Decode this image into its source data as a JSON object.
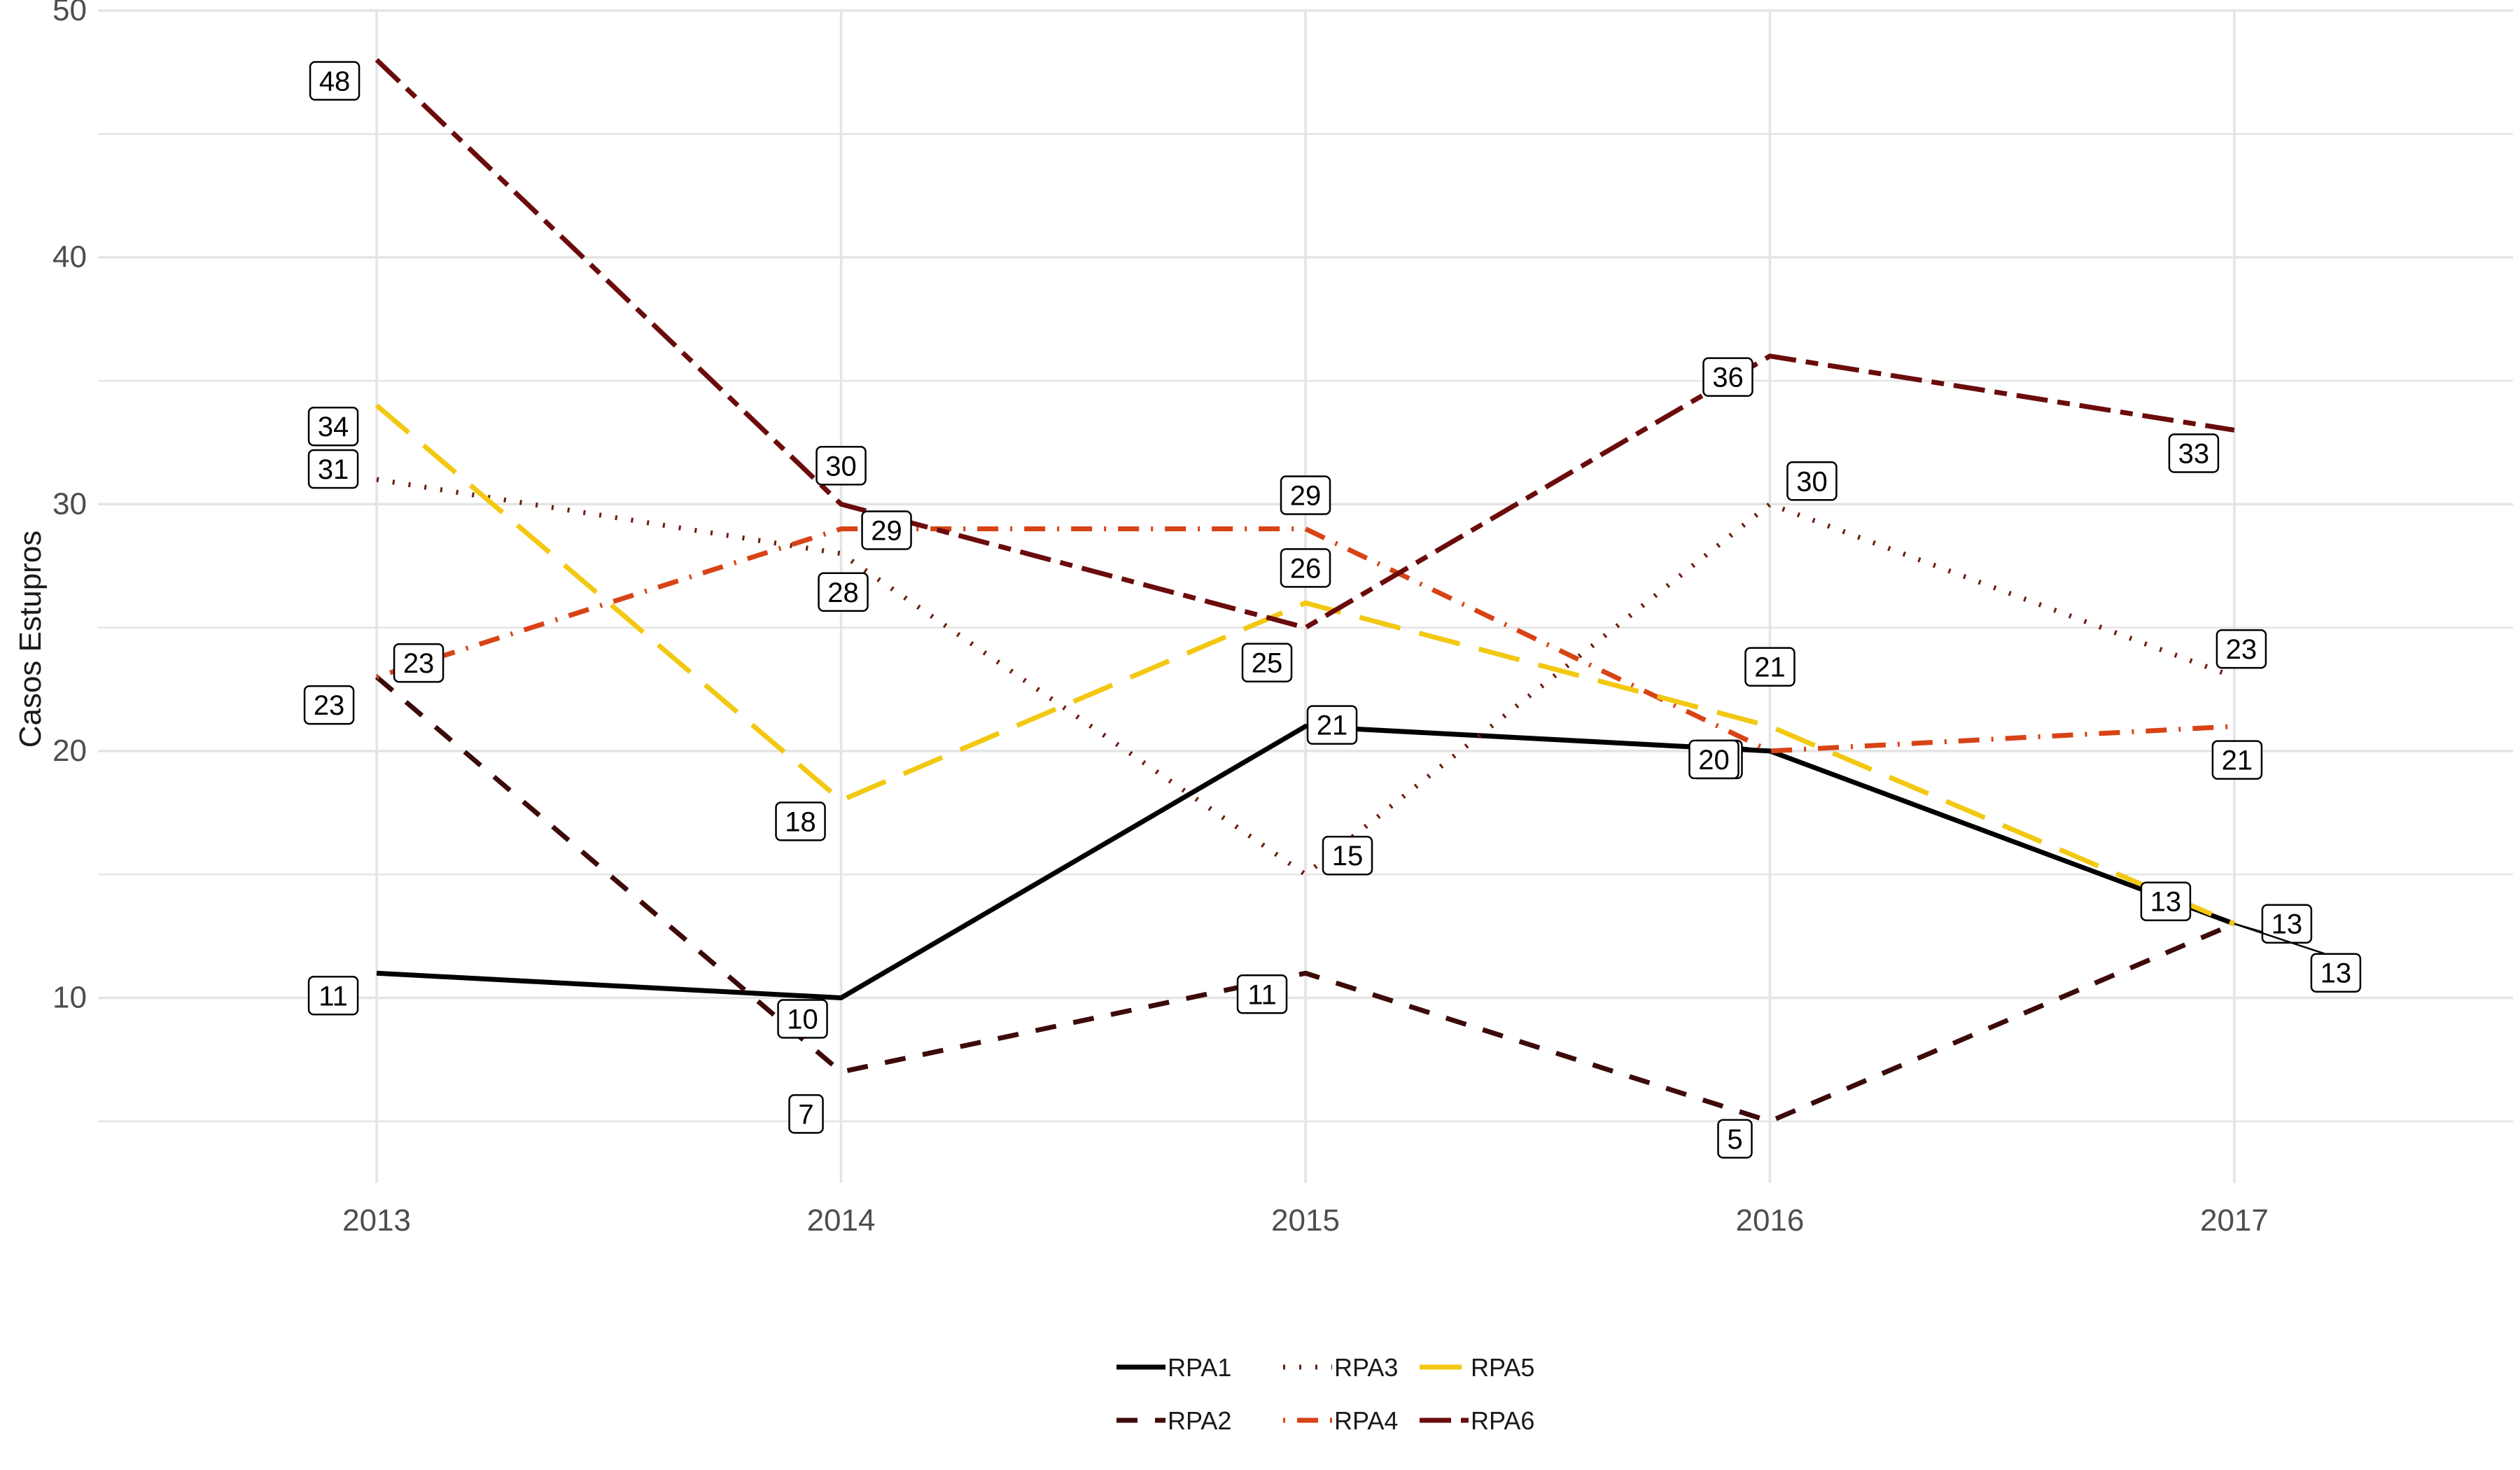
{
  "chart_data": {
    "type": "line",
    "xlabel": "",
    "ylabel": "Casos Estupros",
    "x": [
      2013,
      2014,
      2015,
      2016,
      2017
    ],
    "xlim": [
      2012.4,
      2017.6
    ],
    "ylim": [
      2.5,
      50
    ],
    "y_ticks": [
      10,
      20,
      30,
      40,
      50
    ],
    "grid": true,
    "legend_position": "bottom",
    "series": [
      {
        "name": "RPA1",
        "values": [
          11,
          10,
          21,
          20,
          13
        ],
        "color": "#000000",
        "dash": "solid"
      },
      {
        "name": "RPA2",
        "values": [
          23,
          7,
          11,
          5,
          13
        ],
        "color": "#3d0a0a",
        "dash": "dashed"
      },
      {
        "name": "RPA3",
        "values": [
          31,
          28,
          15,
          30,
          23
        ],
        "color": "#6e1c0e",
        "dash": "dotted"
      },
      {
        "name": "RPA4",
        "values": [
          23,
          29,
          29,
          20,
          21
        ],
        "color": "#d84315",
        "dash": "dotdash"
      },
      {
        "name": "RPA5",
        "values": [
          34,
          18,
          26,
          21,
          13
        ],
        "color": "#f2c811",
        "dash": "longdash"
      },
      {
        "name": "RPA6",
        "values": [
          48,
          30,
          25,
          36,
          33
        ],
        "color": "#6b0b0b",
        "dash": "twodash"
      }
    ]
  }
}
